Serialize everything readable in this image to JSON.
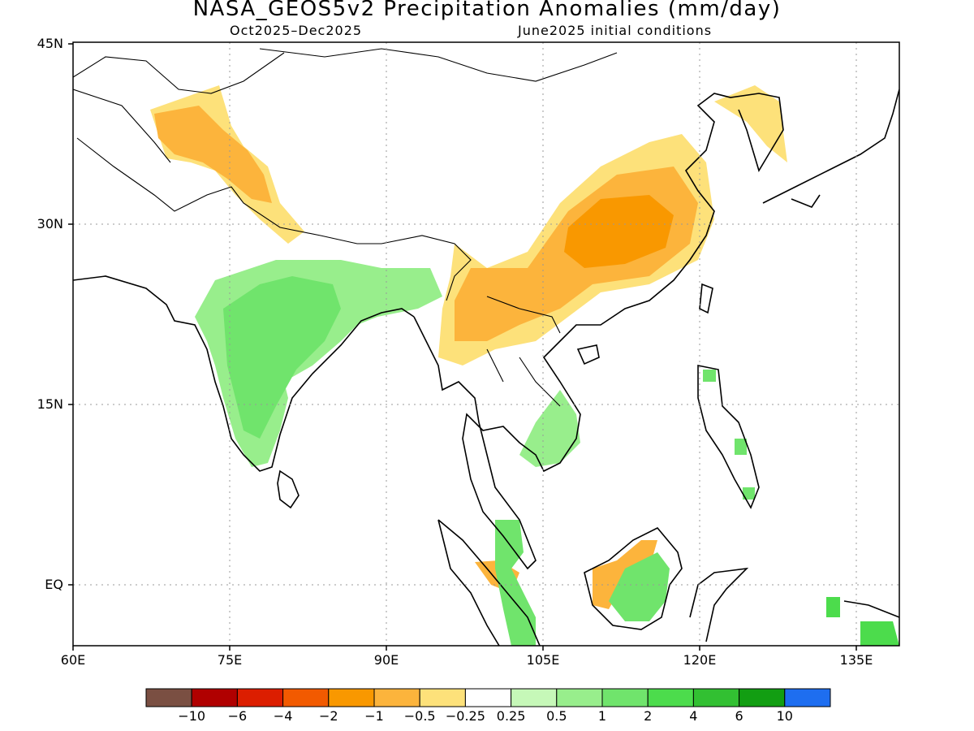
{
  "title": "NASA_GEOS5v2 Precipitation Anomalies (mm/day)",
  "subtitle_left": "Oct2025–Dec2025",
  "subtitle_right": "June2025 initial conditions",
  "lat_labels": [
    "45N",
    "30N",
    "15N",
    "EQ"
  ],
  "lon_labels": [
    "60E",
    "75E",
    "90E",
    "105E",
    "120E",
    "135E"
  ],
  "colorbar": {
    "colors": [
      "#7a4f42",
      "#b00000",
      "#dc1e00",
      "#f25a00",
      "#f99800",
      "#fcb43c",
      "#fde17a",
      "#ffffff",
      "#c6f8b8",
      "#98ee8c",
      "#70e46c",
      "#4cdc4c",
      "#32c032",
      "#129e12",
      "#1e6ef0"
    ],
    "labels": [
      "−10",
      "−6",
      "−4",
      "−2",
      "−1",
      "−0.5",
      "−0.25",
      "0.25",
      "0.5",
      "1",
      "2",
      "4",
      "6",
      "10"
    ]
  }
}
